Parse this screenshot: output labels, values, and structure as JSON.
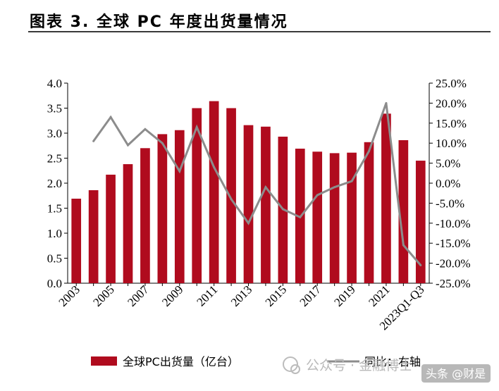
{
  "title": "图表 3. 全球 PC 年度出货量情况",
  "watermark": {
    "account": "公众号 · 金融博士",
    "badge": "头条 @财是"
  },
  "chart_data": {
    "type": "bar",
    "categories": [
      "2003",
      "2004",
      "2005",
      "2006",
      "2007",
      "2008",
      "2009",
      "2010",
      "2011",
      "2012",
      "2013",
      "2014",
      "2015",
      "2016",
      "2017",
      "2018",
      "2019",
      "2020",
      "2021",
      "2022",
      "2023Q1-Q3"
    ],
    "tick_labels": [
      "2003",
      "2005",
      "2007",
      "2009",
      "2011",
      "2013",
      "2015",
      "2017",
      "2019",
      "2021",
      "2023Q1-Q3"
    ],
    "series": [
      {
        "name": "全球PC出货量（亿台）",
        "type": "bar",
        "axis": "left",
        "color": "#b00b1e",
        "values": [
          1.69,
          1.86,
          2.17,
          2.38,
          2.7,
          2.98,
          3.06,
          3.5,
          3.64,
          3.5,
          3.16,
          3.13,
          2.93,
          2.69,
          2.63,
          2.6,
          2.61,
          2.82,
          3.39,
          2.86,
          2.45
        ]
      },
      {
        "name": "同比：右轴",
        "type": "line",
        "axis": "right",
        "color": "#8c8c8c",
        "values": [
          null,
          10.5,
          16.5,
          9.5,
          13.5,
          10.0,
          3.0,
          14.0,
          4.0,
          -4.0,
          -10.0,
          -1.0,
          -6.5,
          -8.5,
          -3.0,
          -1.0,
          0.5,
          8.0,
          20.0,
          -15.5,
          -20.5
        ]
      }
    ],
    "y_left": {
      "min": 0.0,
      "max": 4.0,
      "step": 0.5,
      "ticks": [
        "0.0",
        "0.5",
        "1.0",
        "1.5",
        "2.0",
        "2.5",
        "3.0",
        "3.5",
        "4.0"
      ]
    },
    "y_right": {
      "min": -25,
      "max": 25,
      "step": 5,
      "ticks": [
        "-25.0%",
        "-20.0%",
        "-15.0%",
        "-10.0%",
        "-5.0%",
        "0.0%",
        "5.0%",
        "10.0%",
        "15.0%",
        "20.0%",
        "25.0%"
      ]
    },
    "grid": false,
    "legend_position": "bottom"
  }
}
